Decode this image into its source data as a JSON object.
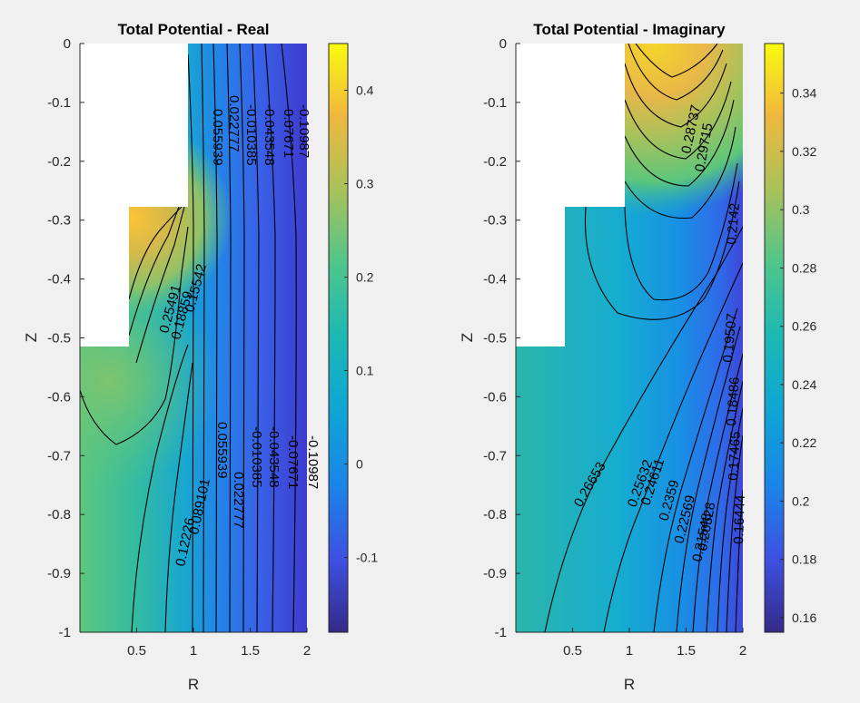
{
  "chart_data": [
    {
      "type": "contour",
      "title": "Total Potential - Real",
      "xlabel": "R",
      "ylabel": "Z",
      "xlim": [
        0,
        2
      ],
      "ylim": [
        -1,
        0
      ],
      "xticks": [
        "0.5",
        "1",
        "1.5",
        "2"
      ],
      "yticks": [
        "0",
        "-0.1",
        "-0.2",
        "-0.3",
        "-0.4",
        "-0.5",
        "-0.6",
        "-0.7",
        "-0.8",
        "-0.9",
        "-1"
      ],
      "colorbar": {
        "min": -0.18,
        "max": 0.45,
        "ticks": [
          "0.4",
          "0.3",
          "0.2",
          "0.1",
          "0",
          "-0.1"
        ]
      },
      "contour_labels": [
        "-0.10987",
        "-0.07671",
        "-0.043548",
        "-0.010385",
        "0.022777",
        "0.055939",
        "0.089101",
        "0.12226",
        "0.25491",
        "0.18859",
        "0.15542"
      ]
    },
    {
      "type": "contour",
      "title": "Total Potential - Imaginary",
      "xlabel": "R",
      "ylabel": "Z",
      "xlim": [
        0,
        2
      ],
      "ylim": [
        -1,
        0
      ],
      "xticks": [
        "0.5",
        "1",
        "1.5",
        "2"
      ],
      "yticks": [
        "0",
        "-0.1",
        "-0.2",
        "-0.3",
        "-0.4",
        "-0.5",
        "-0.6",
        "-0.7",
        "-0.8",
        "-0.9",
        "-1"
      ],
      "colorbar": {
        "min": 0.155,
        "max": 0.357,
        "ticks": [
          "0.34",
          "0.32",
          "0.3",
          "0.28",
          "0.26",
          "0.24",
          "0.22",
          "0.2",
          "0.18",
          "0.16"
        ]
      },
      "contour_labels": [
        "0.26653",
        "0.25632",
        "0.24611",
        "0.2359",
        "0.22569",
        "0.21548",
        "0.20528",
        "0.19507",
        "0.18486",
        "0.17465",
        "0.16444",
        "0.28737",
        "0.29715",
        "0.2142"
      ]
    }
  ]
}
